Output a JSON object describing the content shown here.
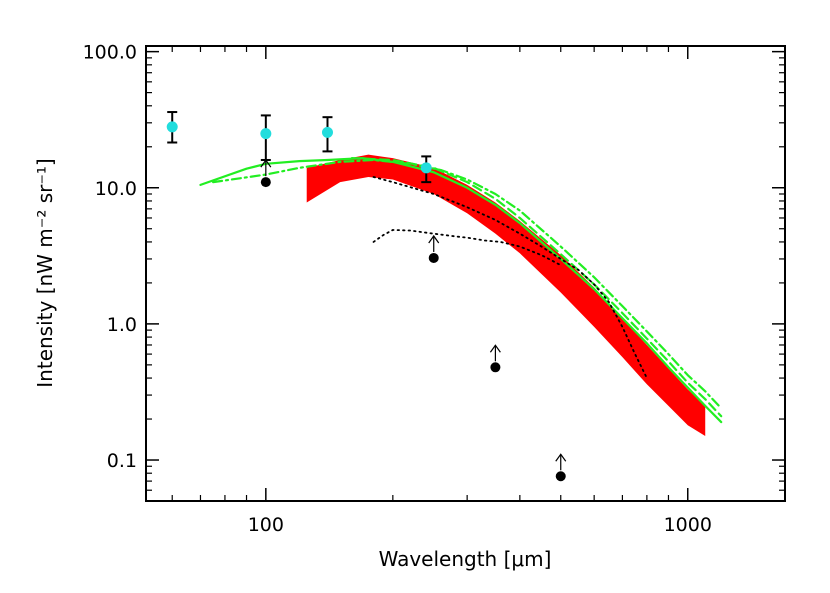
{
  "chart_data": {
    "type": "line",
    "xlabel": "Wavelength [μm]",
    "ylabel": "Intensity [nW m⁻² sr⁻¹]",
    "xscale": "log",
    "yscale": "log",
    "xlim": [
      52,
      1700
    ],
    "ylim": [
      0.05,
      110
    ],
    "x_ticks": [
      {
        "value": 100,
        "label": "100"
      },
      {
        "value": 1000,
        "label": "1000"
      }
    ],
    "y_ticks": [
      {
        "value": 0.1,
        "label": "0.1"
      },
      {
        "value": 1,
        "label": "1.0"
      },
      {
        "value": 10,
        "label": "10.0"
      },
      {
        "value": 100,
        "label": "100.0"
      }
    ],
    "grid": false,
    "legend": "none",
    "series": [
      {
        "style": "band",
        "color": "#ff0000",
        "x": [
          125,
          150,
          175,
          200,
          250,
          300,
          350,
          400,
          500,
          600,
          700,
          800,
          900,
          1000,
          1100
        ],
        "upper": [
          14.0,
          16.0,
          17.5,
          16.5,
          14.0,
          10.5,
          7.8,
          5.7,
          3.2,
          1.85,
          1.1,
          0.7,
          0.47,
          0.33,
          0.25
        ],
        "lower": [
          7.8,
          11.0,
          12.0,
          11.5,
          9.0,
          6.5,
          4.6,
          3.3,
          1.7,
          0.95,
          0.57,
          0.36,
          0.25,
          0.18,
          0.15
        ]
      },
      {
        "style": "solid",
        "color": "#22ee22",
        "x": [
          70,
          90,
          100,
          120,
          140,
          170,
          200,
          250,
          300,
          350,
          400,
          500,
          600,
          700,
          800,
          900,
          1000,
          1100,
          1200
        ],
        "values": [
          10.5,
          13.8,
          15.0,
          15.7,
          16.0,
          16.5,
          15.5,
          13.0,
          10.0,
          7.5,
          5.5,
          3.0,
          1.8,
          1.1,
          0.72,
          0.48,
          0.34,
          0.25,
          0.19
        ]
      },
      {
        "style": "dashed",
        "color": "#22ee22",
        "x": [
          160,
          200,
          250,
          300,
          350,
          400,
          500,
          600,
          700,
          800,
          900,
          1000,
          1100,
          1200
        ],
        "values": [
          16.5,
          16.0,
          14.0,
          11.0,
          8.3,
          6.0,
          3.25,
          1.95,
          1.2,
          0.78,
          0.53,
          0.37,
          0.28,
          0.21
        ]
      },
      {
        "style": "dashdot",
        "color": "#22ee22",
        "x": [
          75,
          100,
          120,
          150,
          180,
          220,
          260,
          300,
          350,
          400,
          500,
          600,
          700,
          800,
          900,
          1000,
          1100,
          1200
        ],
        "values": [
          11.0,
          12.5,
          14.0,
          15.5,
          16.0,
          15.0,
          13.5,
          11.5,
          9.0,
          6.8,
          3.7,
          2.2,
          1.35,
          0.88,
          0.6,
          0.42,
          0.32,
          0.24
        ]
      },
      {
        "style": "dotted",
        "color": "#000000",
        "x": [
          180,
          200,
          250,
          300,
          350,
          400,
          450,
          500,
          550,
          600,
          650,
          700,
          750,
          800
        ],
        "values": [
          12.0,
          11.0,
          9.0,
          7.2,
          5.8,
          4.6,
          3.7,
          3.0,
          2.5,
          1.95,
          1.45,
          0.95,
          0.6,
          0.4
        ]
      },
      {
        "style": "dotted",
        "color": "#000000",
        "x": [
          180,
          190,
          200,
          220,
          250,
          280,
          300,
          330,
          360,
          400,
          450,
          500
        ],
        "values": [
          4.0,
          4.5,
          4.9,
          4.85,
          4.6,
          4.4,
          4.3,
          4.1,
          4.0,
          3.7,
          3.2,
          2.7
        ]
      }
    ],
    "points_with_errors": {
      "color": "#22dddd",
      "x": [
        60,
        100,
        140,
        240
      ],
      "y": [
        28,
        25,
        25.5,
        14
      ],
      "yerr_low": [
        21.5,
        16,
        18.5,
        11
      ],
      "yerr_high": [
        36,
        34,
        33,
        17
      ]
    },
    "lower_limits": {
      "color": "#000000",
      "x": [
        100,
        250,
        350,
        500
      ],
      "y": [
        11.0,
        3.05,
        0.48,
        0.076
      ]
    }
  }
}
